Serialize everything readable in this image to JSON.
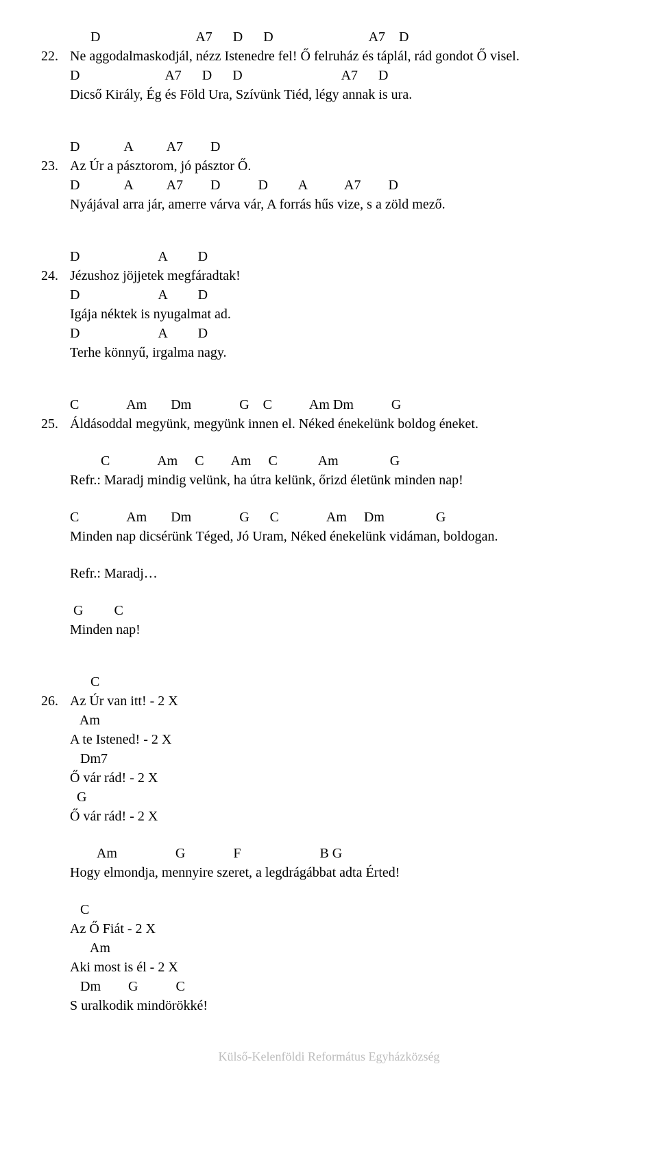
{
  "songs": [
    {
      "num": "22.",
      "blocks": [
        [
          {
            "type": "chord",
            "text": "      D                            A7      D      D                            A7    D"
          },
          {
            "type": "lyric",
            "text": "Ne aggodalmaskodjál, nézz Istenedre fel! Ő felruház és táplál, rád gondot Ő visel."
          },
          {
            "type": "chord",
            "text": "D                         A7      D      D                             A7      D"
          },
          {
            "type": "lyric",
            "text": "Dicső Király, Ég és Föld Ura, Szívünk Tiéd, légy annak is ura."
          }
        ]
      ]
    },
    {
      "num": "23.",
      "blocks": [
        [
          {
            "type": "chord",
            "text": "D             A          A7        D"
          },
          {
            "type": "lyric",
            "text": "Az Úr a pásztorom, jó pásztor Ő."
          },
          {
            "type": "chord",
            "text": "D             A          A7        D           D         A           A7        D"
          },
          {
            "type": "lyric",
            "text": "Nyájával arra jár, amerre várva vár, A forrás hűs vize, s a zöld mező."
          }
        ]
      ]
    },
    {
      "num": "24.",
      "blocks": [
        [
          {
            "type": "chord",
            "text": "D                       A         D"
          },
          {
            "type": "lyric",
            "text": "Jézushoz jöjjetek megfáradtak!"
          },
          {
            "type": "chord",
            "text": "D                       A         D"
          },
          {
            "type": "lyric",
            "text": "Igája néktek is nyugalmat ad."
          },
          {
            "type": "chord",
            "text": "D                       A         D"
          },
          {
            "type": "lyric",
            "text": "Terhe könnyű, irgalma nagy."
          }
        ]
      ]
    },
    {
      "num": "25.",
      "blocks": [
        [
          {
            "type": "chord",
            "text": "C              Am       Dm              G    C           Am Dm           G"
          },
          {
            "type": "lyric",
            "text": "Áldásoddal megyünk, megyünk innen el. Néked énekelünk boldog éneket."
          }
        ],
        [
          {
            "type": "chord",
            "text": "         C              Am     C        Am     C            Am               G"
          },
          {
            "type": "lyric",
            "text": "Refr.: Maradj mindig velünk, ha útra kelünk, őrizd életünk minden nap!"
          }
        ],
        [
          {
            "type": "chord",
            "text": "C              Am       Dm              G      C              Am     Dm               G"
          },
          {
            "type": "lyric",
            "text": "Minden nap dicsérünk Téged, Jó Uram, Néked énekelünk vidáman, boldogan."
          }
        ],
        [
          {
            "type": "lyric",
            "text": "Refr.: Maradj…"
          }
        ],
        [
          {
            "type": "chord",
            "text": " G         C"
          },
          {
            "type": "lyric",
            "text": "Minden nap!"
          }
        ]
      ]
    },
    {
      "num": "26.",
      "blocks": [
        [
          {
            "type": "chord",
            "text": "      C"
          },
          {
            "type": "lyric",
            "text": "Az Úr van itt! - 2 X"
          },
          {
            "type": "chord",
            "text": "   Am"
          },
          {
            "type": "lyric",
            "text": "A te Istened! - 2 X"
          },
          {
            "type": "chord",
            "text": "   Dm7"
          },
          {
            "type": "lyric",
            "text": "Ő vár rád! - 2 X"
          },
          {
            "type": "chord",
            "text": "  G"
          },
          {
            "type": "lyric",
            "text": "Ő vár rád! - 2 X"
          }
        ],
        [
          {
            "type": "chord",
            "text": "        Am                 G              F                       B G"
          },
          {
            "type": "lyric",
            "text": "Hogy elmondja, mennyire szeret, a legdrágábbat adta Érted!"
          }
        ],
        [
          {
            "type": "chord",
            "text": "   C"
          },
          {
            "type": "lyric",
            "text": "Az Ő Fiát - 2 X"
          },
          {
            "type": "chord",
            "text": "      Am"
          },
          {
            "type": "lyric",
            "text": "Aki most is él - 2 X"
          },
          {
            "type": "chord",
            "text": "   Dm        G           C"
          },
          {
            "type": "lyric",
            "text": "S uralkodik mindörökké!"
          }
        ]
      ]
    }
  ],
  "footer": "Külső-Kelenföldi Református Egyházközség"
}
